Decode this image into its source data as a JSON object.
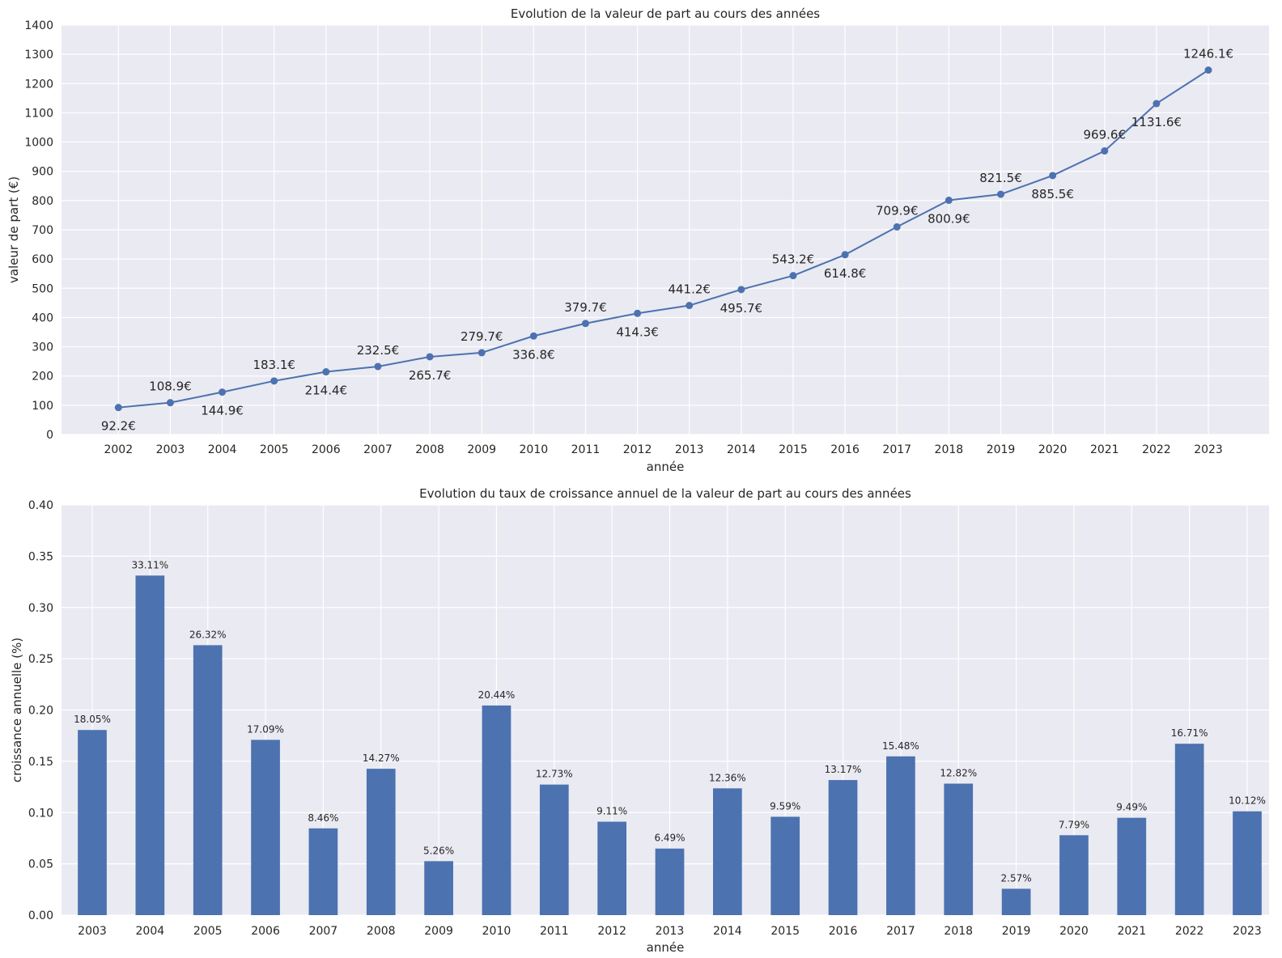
{
  "chart_data": [
    {
      "type": "line",
      "title": "Evolution de la valeur de part au cours des années",
      "xlabel": "année",
      "ylabel": "valeur de part (€)",
      "ylim": [
        0,
        1400
      ],
      "yticks": [
        "0",
        "100",
        "200",
        "300",
        "400",
        "500",
        "600",
        "700",
        "800",
        "900",
        "1000",
        "1100",
        "1200",
        "1300",
        "1400"
      ],
      "categories": [
        "2002",
        "2003",
        "2004",
        "2005",
        "2006",
        "2007",
        "2008",
        "2009",
        "2010",
        "2011",
        "2012",
        "2013",
        "2014",
        "2015",
        "2016",
        "2017",
        "2018",
        "2019",
        "2020",
        "2021",
        "2022",
        "2023"
      ],
      "values": [
        92.2,
        108.9,
        144.9,
        183.1,
        214.4,
        232.5,
        265.7,
        279.7,
        336.8,
        379.7,
        414.3,
        441.2,
        495.7,
        543.2,
        614.8,
        709.9,
        800.9,
        821.5,
        885.5,
        969.6,
        1131.6,
        1246.1
      ],
      "labels": [
        "92.2€",
        "108.9€",
        "144.9€",
        "183.1€",
        "214.4€",
        "232.5€",
        "265.7€",
        "279.7€",
        "336.8€",
        "379.7€",
        "414.3€",
        "441.2€",
        "495.7€",
        "543.2€",
        "614.8€",
        "709.9€",
        "800.9€",
        "821.5€",
        "885.5€",
        "969.6€",
        "1131.6€",
        "1246.1€"
      ],
      "grid": true,
      "color": "#4c72b0"
    },
    {
      "type": "bar",
      "title": "Evolution du taux de croissance annuel de la valeur de part au cours des années",
      "xlabel": "année",
      "ylabel": "croissance annuelle (%)",
      "ylim": [
        0,
        0.4
      ],
      "yticks": [
        "0.00",
        "0.05",
        "0.10",
        "0.15",
        "0.20",
        "0.25",
        "0.30",
        "0.35",
        "0.40"
      ],
      "categories": [
        "2003",
        "2004",
        "2005",
        "2006",
        "2007",
        "2008",
        "2009",
        "2010",
        "2011",
        "2012",
        "2013",
        "2014",
        "2015",
        "2016",
        "2017",
        "2018",
        "2019",
        "2020",
        "2021",
        "2022",
        "2023"
      ],
      "values": [
        0.1805,
        0.3311,
        0.2632,
        0.1709,
        0.0846,
        0.1427,
        0.0526,
        0.2044,
        0.1273,
        0.0911,
        0.0649,
        0.1236,
        0.0959,
        0.1317,
        0.1548,
        0.1282,
        0.0257,
        0.0779,
        0.0949,
        0.1671,
        0.1012
      ],
      "labels": [
        "18.05%",
        "33.11%",
        "26.32%",
        "17.09%",
        "8.46%",
        "14.27%",
        "5.26%",
        "20.44%",
        "12.73%",
        "9.11%",
        "6.49%",
        "12.36%",
        "9.59%",
        "13.17%",
        "15.48%",
        "12.82%",
        "2.57%",
        "7.79%",
        "9.49%",
        "16.71%",
        "10.12%"
      ],
      "grid": true,
      "color": "#4c72b0"
    }
  ]
}
